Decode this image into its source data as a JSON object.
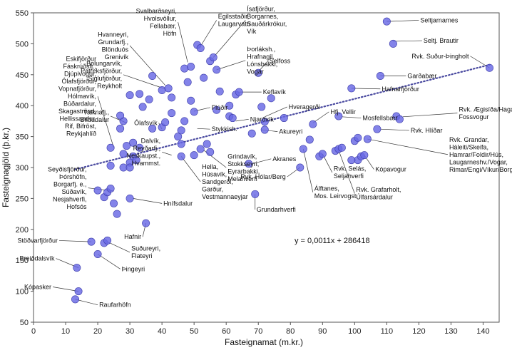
{
  "chart_data": {
    "type": "scatter",
    "xlabel": "Fasteignamat (m.kr.)",
    "ylabel": "Fasteignagjöld (þ.kr.)",
    "xlim": [
      0,
      145
    ],
    "ylim": [
      50,
      550
    ],
    "xticks": [
      0,
      10,
      20,
      30,
      40,
      50,
      60,
      70,
      80,
      90,
      100,
      110,
      120,
      130,
      140
    ],
    "yticks": [
      50,
      100,
      150,
      200,
      250,
      300,
      350,
      400,
      450,
      500,
      550
    ],
    "grid": false,
    "trendline": {
      "equation": "y = 0,0011x + 286418",
      "from": [
        13,
        297
      ],
      "to": [
        142,
        466
      ],
      "style": "dotted"
    },
    "colors": {
      "point_fill": "#6868e4",
      "point_stroke": "#3d3daa",
      "trendline": "#4a4aa0",
      "leader": "#333333"
    },
    "points": [
      [
        13,
        87
      ],
      [
        14,
        100
      ],
      [
        13.5,
        138
      ],
      [
        20,
        160
      ],
      [
        18,
        180
      ],
      [
        22,
        178
      ],
      [
        23,
        182
      ],
      [
        35,
        210
      ],
      [
        25,
        242
      ],
      [
        26,
        225
      ],
      [
        22,
        252
      ],
      [
        23,
        260
      ],
      [
        24,
        266
      ],
      [
        20,
        263
      ],
      [
        30,
        250
      ],
      [
        24,
        303
      ],
      [
        24,
        332
      ],
      [
        28,
        300
      ],
      [
        30,
        308
      ],
      [
        31,
        318
      ],
      [
        32,
        312
      ],
      [
        31,
        340
      ],
      [
        29,
        335
      ],
      [
        28,
        322
      ],
      [
        33,
        332
      ],
      [
        30,
        300
      ],
      [
        27,
        363
      ],
      [
        28,
        375
      ],
      [
        27,
        384
      ],
      [
        30,
        417
      ],
      [
        33,
        419
      ],
      [
        36,
        410
      ],
      [
        34,
        398
      ],
      [
        37,
        448
      ],
      [
        40,
        425
      ],
      [
        42,
        428
      ],
      [
        43,
        413
      ],
      [
        37,
        363
      ],
      [
        40,
        365
      ],
      [
        41,
        373
      ],
      [
        43,
        388
      ],
      [
        45,
        350
      ],
      [
        46,
        338
      ],
      [
        46,
        360
      ],
      [
        47,
        375
      ],
      [
        46,
        318
      ],
      [
        49,
        408
      ],
      [
        48,
        438
      ],
      [
        47,
        460
      ],
      [
        49,
        463
      ],
      [
        51,
        498
      ],
      [
        52,
        493
      ],
      [
        50,
        390
      ],
      [
        50,
        320
      ],
      [
        53,
        445
      ],
      [
        54,
        338
      ],
      [
        52,
        330
      ],
      [
        55,
        325
      ],
      [
        55,
        472
      ],
      [
        56,
        478
      ],
      [
        57,
        458
      ],
      [
        57,
        393
      ],
      [
        58,
        423
      ],
      [
        61,
        383
      ],
      [
        62,
        380
      ],
      [
        61,
        400
      ],
      [
        63,
        418
      ],
      [
        64,
        422
      ],
      [
        67,
        306
      ],
      [
        68,
        355
      ],
      [
        69,
        257
      ],
      [
        70,
        453
      ],
      [
        72,
        361
      ],
      [
        72,
        374
      ],
      [
        71,
        398
      ],
      [
        74,
        412
      ],
      [
        78,
        380
      ],
      [
        83,
        300
      ],
      [
        84,
        330
      ],
      [
        86,
        345
      ],
      [
        87,
        370
      ],
      [
        89,
        318
      ],
      [
        90,
        322
      ],
      [
        94,
        327
      ],
      [
        95,
        330
      ],
      [
        95,
        383
      ],
      [
        96,
        332
      ],
      [
        99,
        428
      ],
      [
        100,
        343
      ],
      [
        101,
        348
      ],
      [
        101,
        312
      ],
      [
        102,
        318
      ],
      [
        103,
        320
      ],
      [
        104,
        346
      ],
      [
        107,
        362
      ],
      [
        108,
        448
      ],
      [
        110,
        536
      ],
      [
        113,
        383
      ],
      [
        114,
        378
      ],
      [
        142,
        461
      ],
      [
        112,
        500
      ],
      [
        99,
        312
      ]
    ],
    "labels": [
      {
        "text": "Egilsstaðir,\nLaugarvatn",
        "ax": 52,
        "ay": 496,
        "tx": 57,
        "ty": 538
      },
      {
        "text": "Svalbarðseyri,\nHvolsvöllur,\nFellabær,\nHöfn",
        "ax": 48,
        "ay": 470,
        "tx": 45,
        "ty": 535
      },
      {
        "text": "Ísafjörður,\nBorgarnes,\nSauðárkrókur,\nVík",
        "ax": 56,
        "ay": 478,
        "tx": 66,
        "ty": 538
      },
      {
        "text": "Hvanneyri,\nGrundarfj.,\nBlönduós\nGrenivík",
        "ax": 41,
        "ay": 433,
        "tx": 30,
        "ty": 497
      },
      {
        "text": "Þorláksh.,\nHrafnagil,\nLónsbakki,\nVogar",
        "ax": 57,
        "ay": 458,
        "tx": 66,
        "ty": 473
      },
      {
        "text": "Selfoss",
        "ax": 70,
        "ay": 455,
        "tx": 73,
        "ty": 472
      },
      {
        "text": "Bolungarvík,\nPatreksfjörður,\nSiglufjörður,\nReykholt",
        "ax": 41,
        "ay": 427,
        "tx": 28,
        "ty": 450
      },
      {
        "text": "Keflavík",
        "ax": 64,
        "ay": 422,
        "tx": 71,
        "ty": 422
      },
      {
        "text": "Eskifjörður\nFáskrúðsfj.,\nDjúpivogur,\nÓlafsfjörður,\nVopnafjörður,\nHólmavík,\nBúðardalur,\nSkagaströnd,\nHellissandur,\nRif, Bifröst,\nReykjahlíð",
        "ax": 25,
        "ay": 332,
        "tx": 20,
        "ty": 415
      },
      {
        "text": "Flúðir",
        "ax": 50,
        "ay": 391,
        "tx": 55,
        "ty": 397
      },
      {
        "text": "Hveragerði",
        "ax": 72,
        "ay": 382,
        "tx": 79,
        "ty": 398
      },
      {
        "text": "Hfj. Vellir",
        "ax": 87,
        "ay": 372,
        "tx": 92,
        "ty": 390
      },
      {
        "text": "Tálknafj.,\nBíldudalur",
        "ax": 29,
        "ay": 372,
        "tx": 24,
        "ty": 383
      },
      {
        "text": "Ólafsvík",
        "ax": 40,
        "ay": 362,
        "tx": 39,
        "ty": 372
      },
      {
        "text": "Njarðvík",
        "ax": 63,
        "ay": 375,
        "tx": 67,
        "ty": 378
      },
      {
        "text": "Mosfellsbær",
        "ax": 96,
        "ay": 382,
        "tx": 102,
        "ty": 380
      },
      {
        "text": "Rvk. Ægisíða/Hagar,\nFossvogur",
        "ax": 115,
        "ay": 382,
        "tx": 132,
        "ty": 388
      },
      {
        "text": "Stykkish.",
        "ax": 51,
        "ay": 363,
        "tx": 55,
        "ty": 362
      },
      {
        "text": "Akureyri",
        "ax": 71,
        "ay": 361,
        "tx": 76,
        "ty": 358
      },
      {
        "text": "Rvk. Hlíðar",
        "ax": 108,
        "ay": 362,
        "tx": 117,
        "ty": 360
      },
      {
        "text": "Rvk. Grandar,\nHáleiti/Skeifa,\nHamrar/Foldir/Hús,\nLaugarneshv./Vogar,\nRimar/Engi/Víkur/Borgir",
        "ax": 104,
        "ay": 346,
        "tx": 129,
        "ty": 321
      },
      {
        "text": "Dalvík,\nReyðarfj.,\nNeskaupst.,\nHvammst.",
        "ax": 43,
        "ay": 320,
        "tx": 40,
        "ty": 325
      },
      {
        "text": "Grindavík,\nStokkseyri,\nEyrarbakki,\nMelahverfi",
        "ax": 53,
        "ay": 328,
        "tx": 60,
        "ty": 300
      },
      {
        "text": "Akranes",
        "ax": 68,
        "ay": 306,
        "tx": 74,
        "ty": 314
      },
      {
        "text": "Kópavogur",
        "ax": 103,
        "ay": 320,
        "tx": 106,
        "ty": 297
      },
      {
        "text": "Rvk. Hólar/Berg",
        "ax": 83,
        "ay": 300,
        "tx": 79,
        "ty": 285
      },
      {
        "text": "Rvk. Selás,\nSeljahverfi",
        "ax": 90,
        "ay": 322,
        "tx": 93,
        "ty": 292
      },
      {
        "text": "Hella,\nHúsavík,\nSandgerði,\nGarður,\nVestmannaeyjar",
        "ax": 46,
        "ay": 318,
        "tx": 52,
        "ty": 277
      },
      {
        "text": "Seyðisfjörður,\nÞórshöfn,\nBorgarfj. e.,\nSúðavík,\nNesjahverfi,\nHofsós",
        "ax": 25,
        "ay": 262,
        "tx": 17,
        "ty": 267
      },
      {
        "text": "Álftanes,\nMos. Leirvogst.",
        "ax": 84,
        "ay": 330,
        "tx": 87,
        "ty": 260
      },
      {
        "text": "Rvk. Grafarholt,\nÚlfarsárdalur",
        "ax": 95,
        "ay": 328,
        "tx": 100,
        "ty": 258
      },
      {
        "text": "Grundarhverfi",
        "ax": 69,
        "ay": 257,
        "tx": 69,
        "ty": 232
      },
      {
        "text": "Hnífsdalur",
        "ax": 31,
        "ay": 250,
        "tx": 40,
        "ty": 242
      },
      {
        "text": "Hafnir",
        "ax": 35,
        "ay": 210,
        "tx": 34,
        "ty": 188
      },
      {
        "text": "Stöðvarfjörður",
        "ax": 18,
        "ay": 180,
        "tx": 8,
        "ty": 182
      },
      {
        "text": "Suðureyri,\nFlateyri",
        "ax": 23,
        "ay": 180,
        "tx": 30,
        "ty": 163
      },
      {
        "text": "Breiðdalsvík",
        "ax": 14,
        "ay": 138,
        "tx": 7,
        "ty": 153
      },
      {
        "text": "Þingeyri",
        "ax": 20,
        "ay": 160,
        "tx": 27,
        "ty": 136
      },
      {
        "text": "Kópasker",
        "ax": 14,
        "ay": 100,
        "tx": 6,
        "ty": 107
      },
      {
        "text": "Raufarhöfn",
        "ax": 13,
        "ay": 87,
        "tx": 20,
        "ty": 78
      },
      {
        "text": "Seltjarnarnes",
        "ax": 110,
        "ay": 536,
        "tx": 120,
        "ty": 538
      },
      {
        "text": "Seltj. Brautir",
        "ax": 112,
        "ay": 504,
        "tx": 121,
        "ty": 505
      },
      {
        "text": "Rvk. Suður-Þingholt",
        "ax": 142,
        "ay": 461,
        "tx": 136,
        "ty": 480
      },
      {
        "text": "Garðabær",
        "ax": 108,
        "ay": 448,
        "tx": 116,
        "ty": 448
      },
      {
        "text": "Hafnarfjörður",
        "ax": 99,
        "ay": 428,
        "tx": 108,
        "ty": 427
      }
    ]
  }
}
